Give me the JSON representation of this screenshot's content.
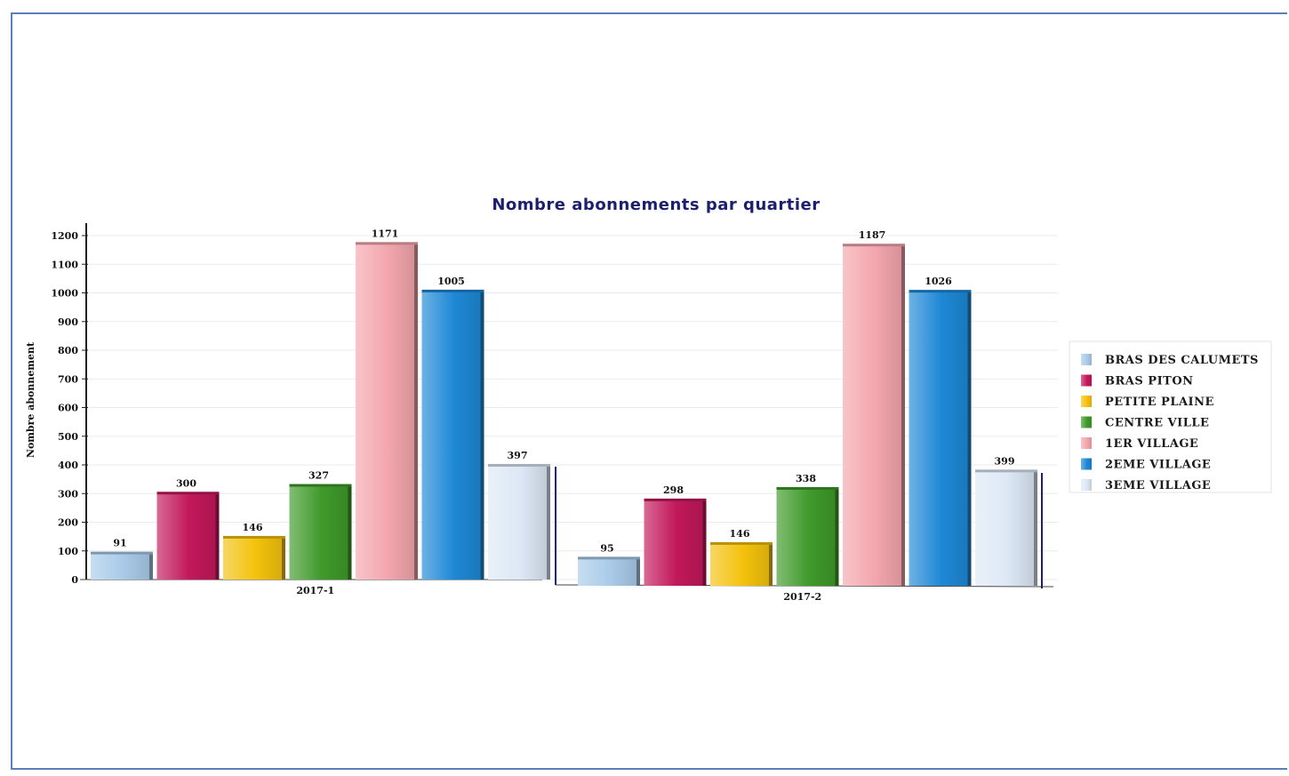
{
  "chart_data": {
    "type": "bar",
    "title": "Nombre abonnements par quartier",
    "ylabel": "Nombre abonnement",
    "xlabel": "",
    "categories": [
      "2017-1",
      "2017-2"
    ],
    "ylim": [
      0,
      1200
    ],
    "yticks": [
      0,
      100,
      200,
      300,
      400,
      500,
      600,
      700,
      800,
      900,
      1000,
      1100,
      1200
    ],
    "grid": true,
    "legend_position": "right",
    "series": [
      {
        "name": "BRAS DES CALUMETS",
        "color": "#a9cbe9",
        "values": [
          91,
          95
        ]
      },
      {
        "name": "BRAS PITON",
        "color": "#c2185b",
        "values": [
          300,
          298
        ]
      },
      {
        "name": "PETITE PLAINE",
        "color": "#f4c20d",
        "values": [
          146,
          146
        ]
      },
      {
        "name": "CENTRE VILLE",
        "color": "#3f9a2a",
        "values": [
          327,
          338
        ]
      },
      {
        "name": "1ER VILLAGE",
        "color": "#f3a6ad",
        "values": [
          1171,
          1187
        ]
      },
      {
        "name": "2EME VILLAGE",
        "color": "#1e88d6",
        "values": [
          1005,
          1026
        ]
      },
      {
        "name": "3EME VILLAGE",
        "color": "#dde8f6",
        "values": [
          397,
          399
        ]
      }
    ]
  }
}
